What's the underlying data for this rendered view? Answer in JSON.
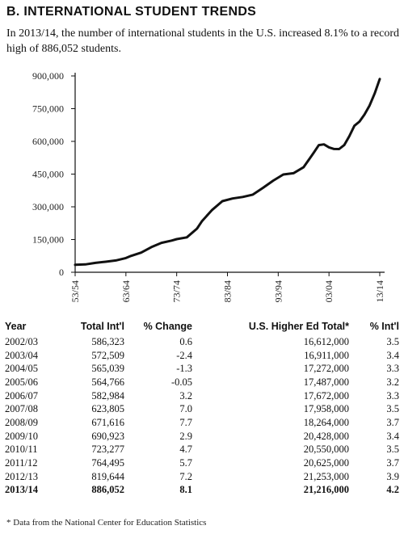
{
  "header": {
    "title": "B.  INTERNATIONAL STUDENT TRENDS",
    "subtitle": "In 2013/14, the number of international students in the U.S. increased 8.1% to a record high of 886,052 students."
  },
  "chart_data": {
    "type": "line",
    "title": "",
    "xlabel": "",
    "ylabel": "",
    "ylim": [
      0,
      900000
    ],
    "y_ticks": [
      0,
      150000,
      300000,
      450000,
      600000,
      750000,
      900000
    ],
    "y_tick_labels": [
      "0",
      "150,000",
      "300,000",
      "450,000",
      "600,000",
      "750,000",
      "900,000"
    ],
    "x_ticks": [
      "53/54",
      "63/64",
      "73/74",
      "83/84",
      "93/94",
      "03/04",
      "13/14"
    ],
    "grid": false,
    "line_color": "#111111",
    "series": [
      {
        "x": [
          1953,
          1955,
          1957,
          1959,
          1961,
          1963,
          1964,
          1966,
          1968,
          1970,
          1972,
          1973,
          1975,
          1977,
          1978,
          1980,
          1982,
          1984,
          1986,
          1988,
          1990,
          1992,
          1994,
          1996,
          1998,
          2000,
          2001,
          2002,
          2003,
          2004,
          2005,
          2006,
          2007,
          2008,
          2009,
          2010,
          2011,
          2012,
          2013
        ],
        "y": [
          34000,
          36000,
          43000,
          48000,
          54000,
          65000,
          75000,
          90000,
          115000,
          135000,
          145000,
          152000,
          160000,
          200000,
          235000,
          286000,
          326000,
          338000,
          345000,
          356000,
          387000,
          420000,
          448000,
          454000,
          482000,
          548000,
          583000,
          586323,
          572509,
          565039,
          564766,
          582984,
          623805,
          671616,
          690923,
          723277,
          764495,
          819644,
          886052
        ]
      }
    ]
  },
  "table": {
    "headers": [
      "Year",
      "Total Int'l",
      "% Change",
      "U.S. Higher Ed Total*",
      "% Int'l"
    ],
    "rows": [
      [
        "2002/03",
        "586,323",
        "0.6",
        "16,612,000",
        "3.5"
      ],
      [
        "2003/04",
        "572,509",
        "-2.4",
        "16,911,000",
        "3.4"
      ],
      [
        "2004/05",
        "565,039",
        "-1.3",
        "17,272,000",
        "3.3"
      ],
      [
        "2005/06",
        "564,766",
        "-0.05",
        "17,487,000",
        "3.2"
      ],
      [
        "2006/07",
        "582,984",
        "3.2",
        "17,672,000",
        "3.3"
      ],
      [
        "2007/08",
        "623,805",
        "7.0",
        "17,958,000",
        "3.5"
      ],
      [
        "2008/09",
        "671,616",
        "7.7",
        "18,264,000",
        "3.7"
      ],
      [
        "2009/10",
        "690,923",
        "2.9",
        "20,428,000",
        "3.4"
      ],
      [
        "2010/11",
        "723,277",
        "4.7",
        "20,550,000",
        "3.5"
      ],
      [
        "2011/12",
        "764,495",
        "5.7",
        "20,625,000",
        "3.7"
      ],
      [
        "2012/13",
        "819,644",
        "7.2",
        "21,253,000",
        "3.9"
      ],
      [
        "2013/14",
        "886,052",
        "8.1",
        "21,216,000",
        "4.2"
      ]
    ]
  },
  "footnote": "* Data from the National Center for Education Statistics"
}
